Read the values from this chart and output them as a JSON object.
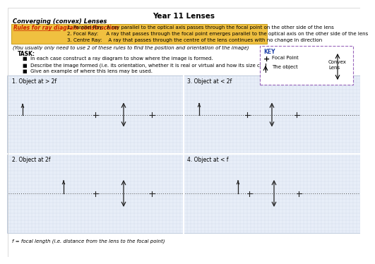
{
  "title": "Year 11 Lenses",
  "subtitle": "Converging (convex) Lenses",
  "rules_label": "Rules for ray diagram construction",
  "rules": [
    "1. Parallel Ray:  A ray parallel to the optical axis passes through the focal point on the other side of the lens",
    "2. Focal Ray:     A ray that passes through the focal point emerges parallel to the optical axis on the other side of the lens",
    "3. Centre Ray:    A ray that passes through the centre of the lens continues with no change in direction"
  ],
  "note": "(You usually only need to use 2 of these rules to find the position and orientation of the image)",
  "task_label": "TASK:",
  "task_items": [
    "In each case construct a ray diagram to show where the image is formed.",
    "Describe the image formed (i.e. its orientation, whether it is real or virtual and how its size compares to the object)",
    "Give an example of where this lens may be used."
  ],
  "key_label": "KEY",
  "key_focal": "Focal Point",
  "key_object": "The object",
  "key_convex": "Convex\nLens",
  "footnote": "f = focal length (i.e. distance from the lens to the focal point)",
  "bg_color": "#e8eef8",
  "yellow_bg": "#f0c040",
  "yellow_border": "#c8a020",
  "grid_color": "#c0cce0",
  "axis_color": "#555555",
  "arrow_color": "#333333",
  "key_border_color": "#9966bb",
  "title_size": 7.5,
  "subtitle_size": 6,
  "rules_label_size": 5.5,
  "rules_text_size": 5,
  "note_size": 5,
  "task_label_size": 5.5,
  "task_text_size": 5,
  "diagram_label_size": 5.5,
  "footnote_size": 5,
  "key_label_size": 5.5,
  "key_text_size": 5
}
